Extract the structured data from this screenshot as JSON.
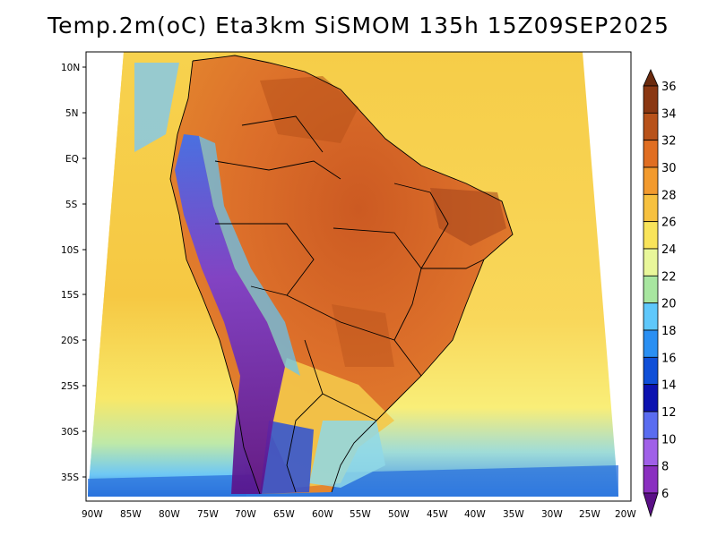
{
  "title": "Temp.2m(oC) Eta3km SiSMOM 135h 15Z09SEP2025",
  "map": {
    "variable": "2m temperature",
    "units": "oC",
    "lat_labels": [
      "10N",
      "5N",
      "EQ",
      "5S",
      "10S",
      "15S",
      "20S",
      "25S",
      "30S",
      "35S"
    ],
    "lon_labels": [
      "90W",
      "85W",
      "80W",
      "75W",
      "70W",
      "65W",
      "60W",
      "55W",
      "50W",
      "45W",
      "40W",
      "35W",
      "30W",
      "25W",
      "20W"
    ],
    "colors": {
      "ocean_warm": "#f4c84a",
      "ocean_mid": "#ffe24f",
      "land_hot": "#d9652a",
      "land_very_hot": "#a8481c",
      "andes_cold": "#6a1fa5",
      "border_line": "#000000"
    }
  },
  "colorbar": {
    "levels": [
      "6",
      "8",
      "10",
      "12",
      "14",
      "16",
      "18",
      "20",
      "22",
      "24",
      "26",
      "28",
      "30",
      "32",
      "34",
      "36"
    ],
    "colors": [
      "#5a0f86",
      "#8a2fc0",
      "#a060e8",
      "#5a6cf0",
      "#0c12b0",
      "#0f4fd8",
      "#2a8ff2",
      "#5fc8fb",
      "#a8e6a0",
      "#e9f79a",
      "#f9e45a",
      "#f7c13f",
      "#f29a2e",
      "#e06e22",
      "#b8521a",
      "#8a3712",
      "#6a2a0e"
    ]
  }
}
